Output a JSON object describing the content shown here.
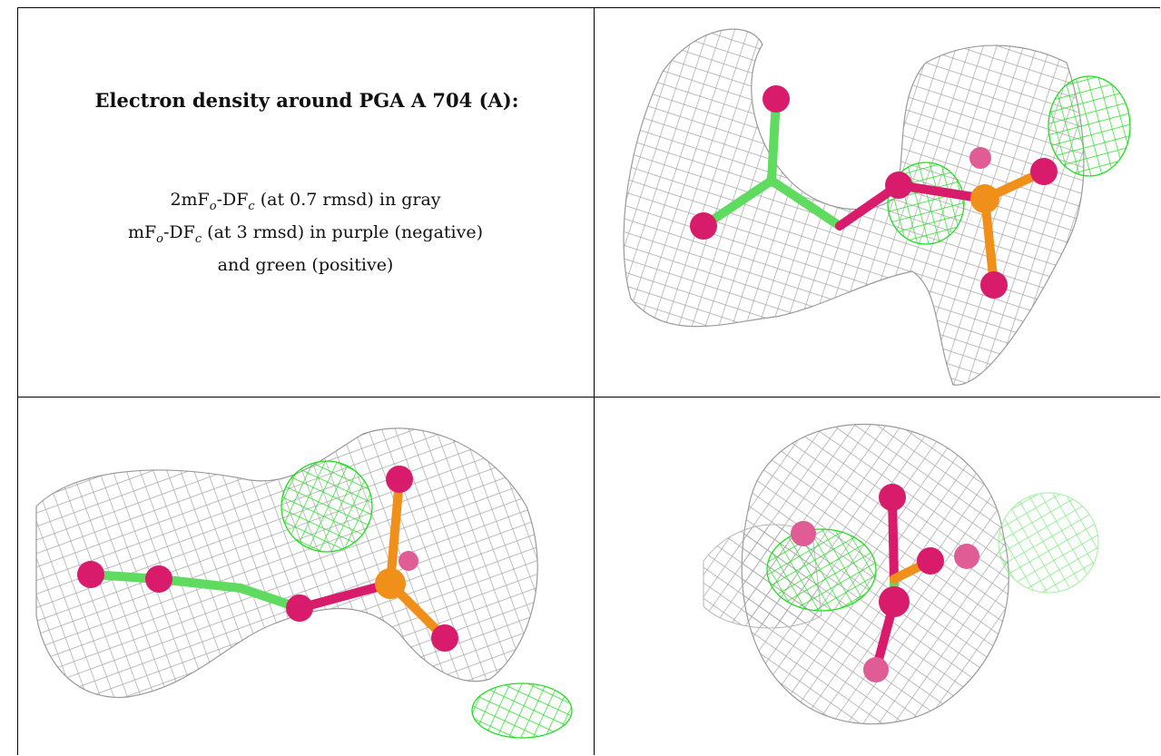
{
  "caption": {
    "title": "Electron density around PGA A 704 (A):",
    "line1_pre": "2mF",
    "line1_sub1": "o",
    "line1_mid": "-DF",
    "line1_sub2": "c",
    "line1_post": " (at 0.7 rmsd) in gray",
    "line2_pre": "mF",
    "line2_sub1": "o",
    "line2_mid": "-DF",
    "line2_sub2": "c",
    "line2_post": " (at 3 rmsd) in purple (negative)",
    "line3": "and green (positive)"
  },
  "panels": [
    {
      "view": "top-right",
      "content": "PGA ligand with gray 2mFo-DFc mesh and green positive difference density"
    },
    {
      "view": "bottom-left",
      "content": "PGA ligand side view with gray mesh and green positive density"
    },
    {
      "view": "bottom-right",
      "content": "PGA ligand end-on view with gray mesh and green positive density"
    }
  ],
  "colors": {
    "mesh_gray": "#9a9a9a",
    "mesh_green": "#22dd22",
    "oxygen": "#d81b6a",
    "phosphorus": "#f0901a",
    "carbon": "#5fdc5f"
  }
}
